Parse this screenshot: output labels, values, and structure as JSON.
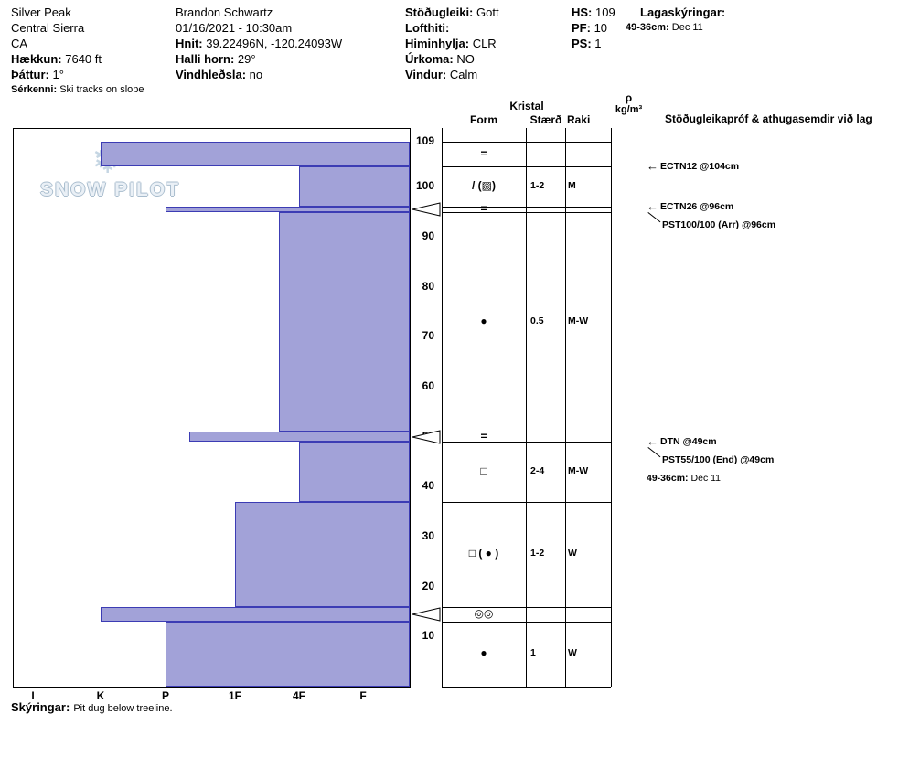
{
  "header": {
    "columns": [
      {
        "name": "location",
        "lines": [
          {
            "value": "Silver Peak"
          },
          {
            "value": "Central Sierra"
          },
          {
            "value": "CA"
          },
          {
            "label": "Hækkun:",
            "value": "7640 ft"
          },
          {
            "label": "Þáttur:",
            "value": "1°"
          },
          {
            "label": "Sérkenni:",
            "value": "Ski tracks on slope",
            "small": true
          }
        ]
      },
      {
        "name": "observer",
        "lines": [
          {
            "value": "Brandon Schwartz"
          },
          {
            "value": "01/16/2021 - 10:30am"
          },
          {
            "label": "Hnit:",
            "value": "39.22496N, -120.24093W"
          },
          {
            "label": "Halli horn:",
            "value": "29°"
          },
          {
            "label": "Vindhleðsla:",
            "value": "no"
          }
        ]
      },
      {
        "name": "conditions",
        "lines": [
          {
            "label": "Stöðugleiki:",
            "value": "Gott"
          },
          {
            "label": "Lofthiti:",
            "value": ""
          },
          {
            "label": "Himinhylja:",
            "value": "CLR"
          },
          {
            "label": "Úrkoma:",
            "value": "NO"
          },
          {
            "label": "Vindur:",
            "value": "Calm"
          }
        ]
      },
      {
        "name": "snowpack",
        "lines": [
          {
            "label": "HS:",
            "value": "109"
          },
          {
            "label": "PF:",
            "value": "10"
          },
          {
            "label": "PS:",
            "value": "1"
          }
        ]
      },
      {
        "name": "layer-notes",
        "lines": [
          {
            "label": "Lagaskýringar:",
            "value": ""
          },
          {
            "label": "49-36cm:",
            "value": "Dec 11",
            "small": true
          }
        ]
      }
    ]
  },
  "watermark": {
    "flake": "❄",
    "line": "SNOW PILOT"
  },
  "table": {
    "group": "Kristal",
    "col_form": "Form",
    "col_size": "Stærð",
    "col_moisture": "Raki",
    "density_symbol": "ρ",
    "density_unit": "kg/m³",
    "comments_header": "Stöðugleikapróf & athugasemdir við lag"
  },
  "chart_data": {
    "type": "bar",
    "orientation": "horizontal-hardness-profile",
    "bar_color": "#a2a2d8",
    "bar_border": "#3c3cb4",
    "y_axis": {
      "unit": "cm",
      "min": 0,
      "max": 109,
      "ticks": [
        109,
        100,
        90,
        80,
        70,
        60,
        50,
        40,
        30,
        20,
        10
      ]
    },
    "x_axis": {
      "unit": "hand hardness",
      "categories": [
        "I",
        "K",
        "P",
        "1F",
        "4F",
        "F"
      ]
    },
    "layers": [
      {
        "top_cm": 109,
        "bottom_cm": 104,
        "hardness": "K",
        "form": "=",
        "size": "",
        "moisture": ""
      },
      {
        "top_cm": 104,
        "bottom_cm": 96,
        "hardness": "4F",
        "form": "/ (▨)",
        "size": "1-2",
        "moisture": "M"
      },
      {
        "top_cm": 96,
        "bottom_cm": 95,
        "hardness": "P",
        "form": "=",
        "size": "",
        "moisture": ""
      },
      {
        "top_cm": 95,
        "bottom_cm": 51,
        "hardness": "4F+",
        "form": "●",
        "size": "0.5",
        "moisture": "M-W"
      },
      {
        "top_cm": 51,
        "bottom_cm": 49,
        "hardness": "P-",
        "form": "=",
        "size": "",
        "moisture": ""
      },
      {
        "top_cm": 49,
        "bottom_cm": 37,
        "hardness": "4F",
        "form": "□",
        "size": "2-4",
        "moisture": "M-W"
      },
      {
        "top_cm": 37,
        "bottom_cm": 16,
        "hardness": "1F",
        "form": "□ ( ● )",
        "size": "1-2",
        "moisture": "W"
      },
      {
        "top_cm": 16,
        "bottom_cm": 13,
        "hardness": "K",
        "form": "◎◎",
        "size": "",
        "moisture": ""
      },
      {
        "top_cm": 13,
        "bottom_cm": 0,
        "hardness": "P",
        "form": "●",
        "size": "1",
        "moisture": "W"
      }
    ],
    "boundary_markers_cm": [
      95.5,
      50,
      14.5
    ],
    "annotations": [
      {
        "text": "ECTN12 @104cm",
        "cm": 104,
        "slot": 0,
        "connector": "arrow"
      },
      {
        "text": "ECTN26 @96cm",
        "cm": 96,
        "slot": 0,
        "connector": "arrow"
      },
      {
        "text": "PST100/100 (Arr) @96cm",
        "cm": 96,
        "slot": 1,
        "connector": "diagonal"
      },
      {
        "text": "DTN @49cm",
        "cm": 49,
        "slot": 0,
        "connector": "arrow"
      },
      {
        "text": "PST55/100 (End) @49cm",
        "cm": 49,
        "slot": 1,
        "connector": "diagonal"
      },
      {
        "label": "49-36cm:",
        "text": "Dec 11",
        "cm": 49,
        "slot": 2,
        "connector": "none"
      }
    ]
  },
  "footer": {
    "label": "Skýringar:",
    "text": "Pit dug below treeline."
  }
}
